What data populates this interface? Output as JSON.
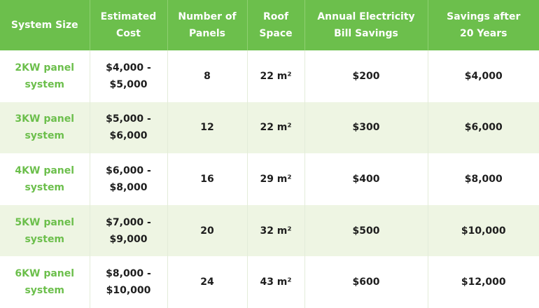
{
  "table": {
    "header": [
      "System Size",
      "Estimated Cost",
      "Number of Panels",
      "Roof Space",
      "Annual Electricity Bill Savings",
      "Savings after 20 Years"
    ],
    "rows": [
      [
        "2KW panel system",
        "$4,000 - $5,000",
        "8",
        "22 m²",
        "$200",
        "$4,000"
      ],
      [
        "3KW panel system",
        "$5,000 - $6,000",
        "12",
        "22 m²",
        "$300",
        "$6,000"
      ],
      [
        "4KW panel system",
        "$6,000 - $8,000",
        "16",
        "29 m²",
        "$400",
        "$8,000"
      ],
      [
        "5KW panel system",
        "$7,000 - $9,000",
        "20",
        "32 m²",
        "$500",
        "$10,000"
      ],
      [
        "6KW panel system",
        "$8,000 - $10,000",
        "24",
        "43 m²",
        "$600",
        "$12,000"
      ]
    ]
  }
}
